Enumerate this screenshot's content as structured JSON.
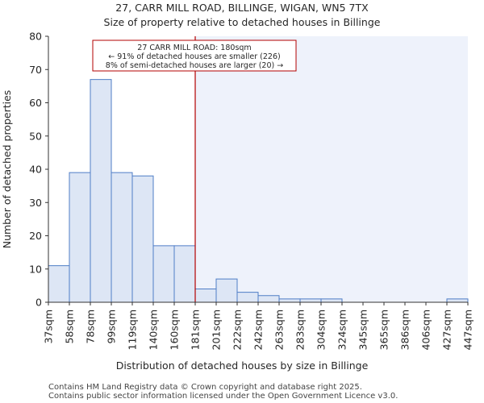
{
  "colors": {
    "bar_fill": "#dde6f5",
    "bar_stroke": "#4f7ec6",
    "highlight_region": "#eef2fb",
    "marker_line": "#b30000",
    "annotation_border": "#b30000"
  },
  "chart_data": {
    "type": "bar",
    "title": "27, CARR MILL ROAD, BILLINGE, WIGAN, WN5 7TX",
    "subtitle": "Size of property relative to detached houses in Billinge",
    "xlabel": "Distribution of detached houses by size in Billinge",
    "ylabel": "Number of detached properties",
    "ylim": [
      0,
      80
    ],
    "yticks": [
      0,
      10,
      20,
      30,
      40,
      50,
      60,
      70,
      80
    ],
    "bin_edges": [
      "37sqm",
      "58sqm",
      "78sqm",
      "99sqm",
      "119sqm",
      "140sqm",
      "160sqm",
      "181sqm",
      "201sqm",
      "222sqm",
      "242sqm",
      "263sqm",
      "283sqm",
      "304sqm",
      "324sqm",
      "345sqm",
      "365sqm",
      "386sqm",
      "406sqm",
      "427sqm",
      "447sqm"
    ],
    "values": [
      11,
      39,
      67,
      39,
      38,
      17,
      17,
      4,
      7,
      3,
      2,
      1,
      1,
      1,
      0,
      0,
      0,
      0,
      0,
      1
    ],
    "marker_bin_index": 7,
    "annotation": {
      "line1": "27 CARR MILL ROAD: 180sqm",
      "line2": "← 91% of detached houses are smaller (226)",
      "line3": "8% of semi-detached houses are larger (20) →"
    }
  },
  "footer": {
    "line1": "Contains HM Land Registry data © Crown copyright and database right 2025.",
    "line2": "Contains public sector information licensed under the Open Government Licence v3.0."
  }
}
